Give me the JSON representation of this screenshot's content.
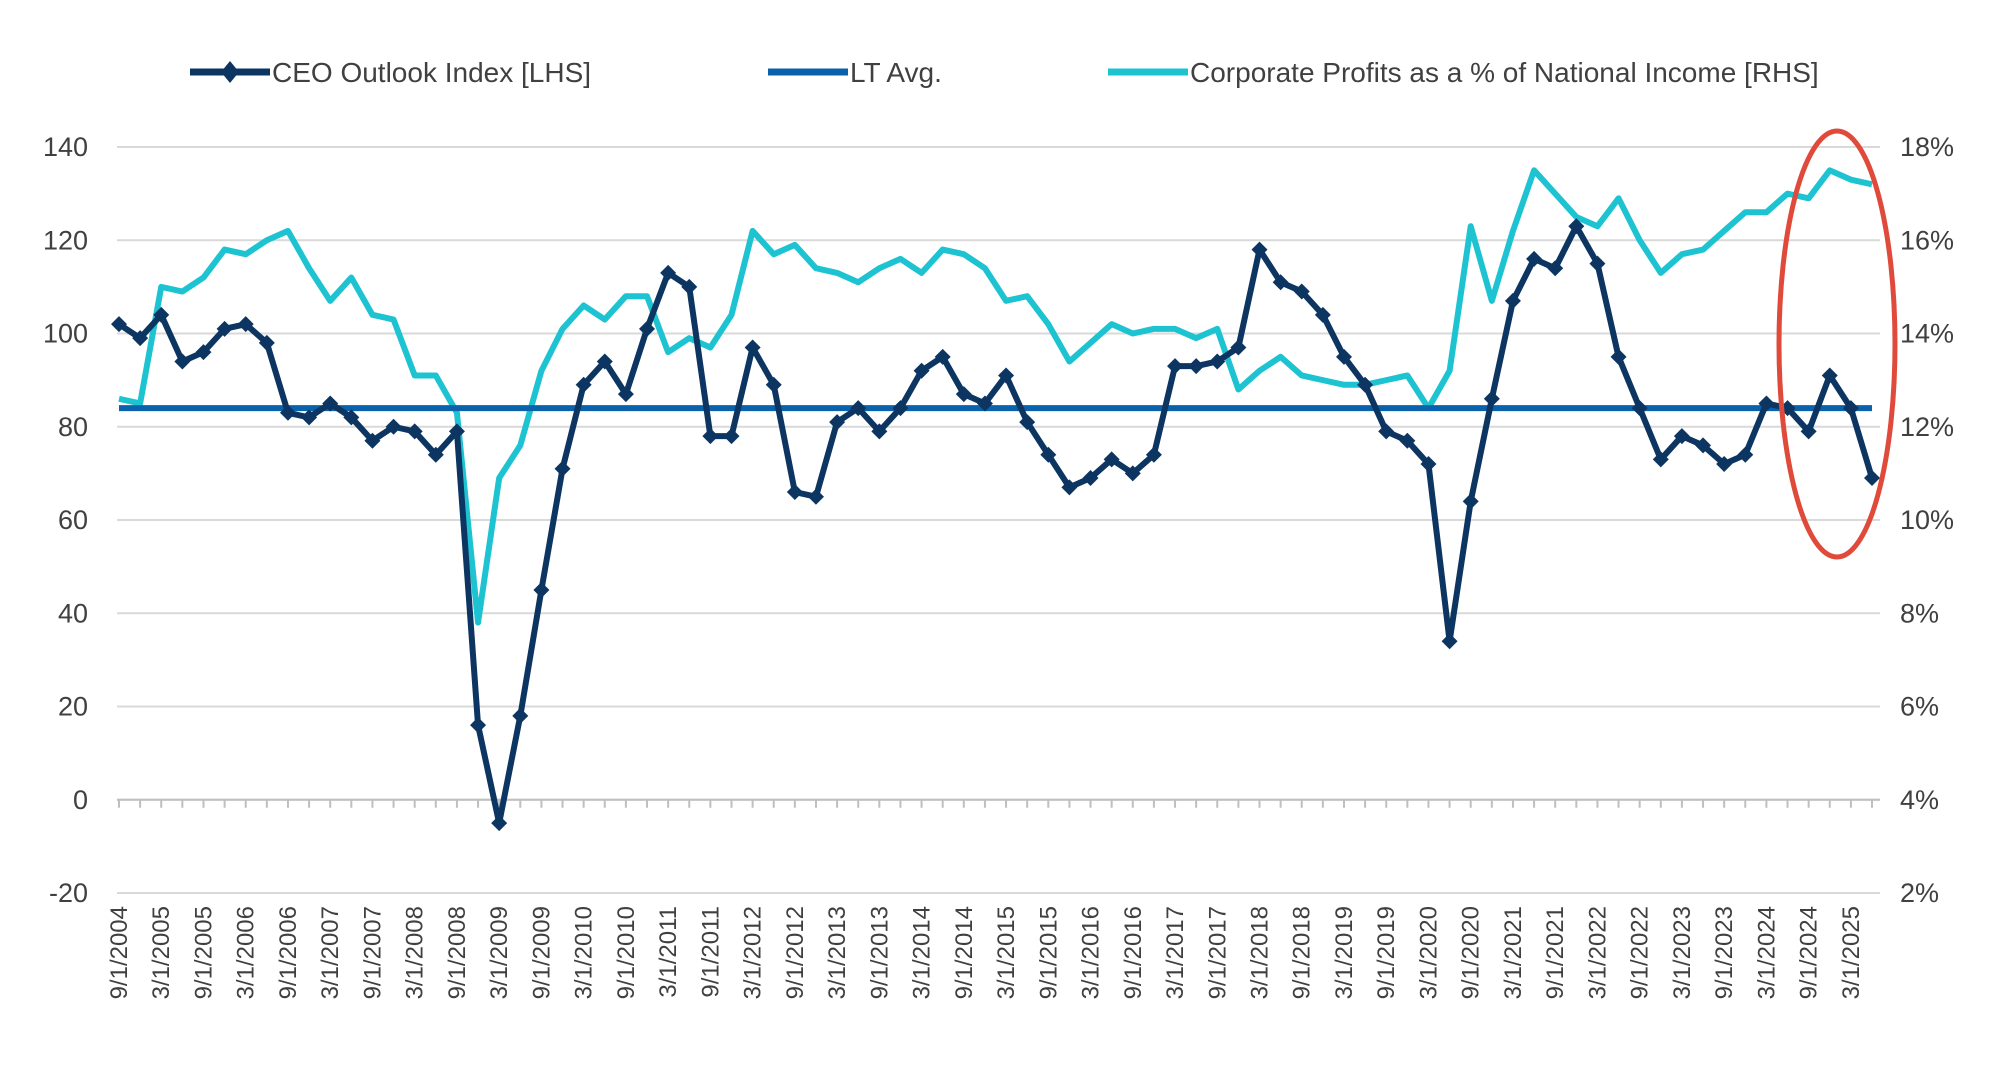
{
  "chart_data": {
    "type": "line",
    "title": "",
    "legend_position": "top",
    "grid": true,
    "x": [
      "9/1/2004",
      "12/1/2004",
      "3/1/2005",
      "6/1/2005",
      "9/1/2005",
      "12/1/2005",
      "3/1/2006",
      "6/1/2006",
      "9/1/2006",
      "12/1/2006",
      "3/1/2007",
      "6/1/2007",
      "9/1/2007",
      "12/1/2007",
      "3/1/2008",
      "6/1/2008",
      "9/1/2008",
      "12/1/2008",
      "3/1/2009",
      "6/1/2009",
      "9/1/2009",
      "12/1/2009",
      "3/1/2010",
      "6/1/2010",
      "9/1/2010",
      "12/1/2010",
      "3/1/2011",
      "6/1/2011",
      "9/1/2011",
      "12/1/2011",
      "3/1/2012",
      "6/1/2012",
      "9/1/2012",
      "12/1/2012",
      "3/1/2013",
      "6/1/2013",
      "9/1/2013",
      "12/1/2013",
      "3/1/2014",
      "6/1/2014",
      "9/1/2014",
      "12/1/2014",
      "3/1/2015",
      "6/1/2015",
      "9/1/2015",
      "12/1/2015",
      "3/1/2016",
      "6/1/2016",
      "9/1/2016",
      "12/1/2016",
      "3/1/2017",
      "6/1/2017",
      "9/1/2017",
      "12/1/2017",
      "3/1/2018",
      "6/1/2018",
      "9/1/2018",
      "12/1/2018",
      "3/1/2019",
      "6/1/2019",
      "9/1/2019",
      "12/1/2019",
      "3/1/2020",
      "6/1/2020",
      "9/1/2020",
      "12/1/2020",
      "3/1/2021",
      "6/1/2021",
      "9/1/2021",
      "12/1/2021",
      "3/1/2022",
      "6/1/2022",
      "9/1/2022",
      "12/1/2022",
      "3/1/2023",
      "6/1/2023",
      "9/1/2023",
      "12/1/2023",
      "3/1/2024",
      "6/1/2024",
      "9/1/2024",
      "12/1/2024",
      "3/1/2025",
      "6/1/2025"
    ],
    "x_tick_labels": [
      "9/1/2004",
      "3/1/2005",
      "9/1/2005",
      "3/1/2006",
      "9/1/2006",
      "3/1/2007",
      "9/1/2007",
      "3/1/2008",
      "9/1/2008",
      "3/1/2009",
      "9/1/2009",
      "3/1/2010",
      "9/1/2010",
      "3/1/2011",
      "9/1/2011",
      "3/1/2012",
      "9/1/2012",
      "3/1/2013",
      "9/1/2013",
      "3/1/2014",
      "9/1/2014",
      "3/1/2015",
      "9/1/2015",
      "3/1/2016",
      "9/1/2016",
      "3/1/2017",
      "9/1/2017",
      "3/1/2018",
      "9/1/2018",
      "3/1/2019",
      "9/1/2019",
      "3/1/2020",
      "9/1/2020",
      "3/1/2021",
      "9/1/2021",
      "3/1/2022",
      "9/1/2022",
      "3/1/2023",
      "9/1/2023",
      "3/1/2024",
      "9/1/2024",
      "3/1/2025"
    ],
    "y_left": {
      "ylim": [
        -20,
        140
      ],
      "ticks": [
        "-20",
        "0",
        "20",
        "40",
        "60",
        "80",
        "100",
        "120",
        "140"
      ]
    },
    "y_right": {
      "ylim": [
        2,
        18
      ],
      "ticks": [
        "2%",
        "4%",
        "6%",
        "8%",
        "10%",
        "12%",
        "14%",
        "16%",
        "18%"
      ]
    },
    "series": [
      {
        "name": "CEO Outlook Index [LHS]",
        "axis": "left",
        "color": "#0d3561",
        "marker": "diamond",
        "values": [
          102,
          99,
          104,
          94,
          96,
          101,
          102,
          98,
          83,
          82,
          85,
          82,
          77,
          80,
          79,
          74,
          79,
          16,
          -5,
          18,
          45,
          71,
          89,
          94,
          87,
          101,
          113,
          110,
          78,
          78,
          97,
          89,
          66,
          65,
          81,
          84,
          79,
          84,
          92,
          95,
          87,
          85,
          91,
          81,
          74,
          67,
          69,
          73,
          70,
          74,
          93,
          93,
          94,
          97,
          118,
          111,
          109,
          104,
          95,
          89,
          79,
          77,
          72,
          34,
          64,
          86,
          107,
          116,
          114,
          123,
          115,
          95,
          84,
          73,
          78,
          76,
          72,
          74,
          85,
          84,
          79,
          91,
          84,
          69
        ]
      },
      {
        "name": "LT Avg.",
        "axis": "left",
        "color": "#0a62ad",
        "constant": 84
      },
      {
        "name": "Corporate Profits as a % of National Income [RHS]",
        "axis": "right",
        "color": "#1ec3d2",
        "values": [
          12.6,
          12.5,
          15.0,
          14.9,
          15.2,
          15.8,
          15.7,
          16.0,
          16.2,
          15.4,
          14.7,
          15.2,
          14.4,
          14.3,
          13.1,
          13.1,
          12.3,
          7.8,
          10.9,
          11.6,
          13.2,
          14.1,
          14.6,
          14.3,
          14.8,
          14.8,
          13.6,
          13.9,
          13.7,
          14.4,
          16.2,
          15.7,
          15.9,
          15.4,
          15.3,
          15.1,
          15.4,
          15.6,
          15.3,
          15.8,
          15.7,
          15.4,
          14.7,
          14.8,
          14.2,
          13.4,
          13.8,
          14.2,
          14.0,
          14.1,
          14.1,
          13.9,
          14.1,
          12.8,
          13.2,
          13.5,
          13.1,
          13.0,
          12.9,
          12.9,
          13.0,
          13.1,
          12.4,
          13.2,
          16.3,
          14.7,
          16.2,
          17.5,
          17.0,
          16.5,
          16.3,
          16.9,
          16.0,
          15.3,
          15.7,
          15.8,
          16.2,
          16.6,
          16.6,
          17.0,
          16.9,
          17.5,
          17.3,
          17.2
        ]
      }
    ],
    "annotation": {
      "shape": "ellipse",
      "color": "#e04a3b",
      "highlights": "most recent quarters (9/1/2024–6/1/2025)"
    }
  }
}
